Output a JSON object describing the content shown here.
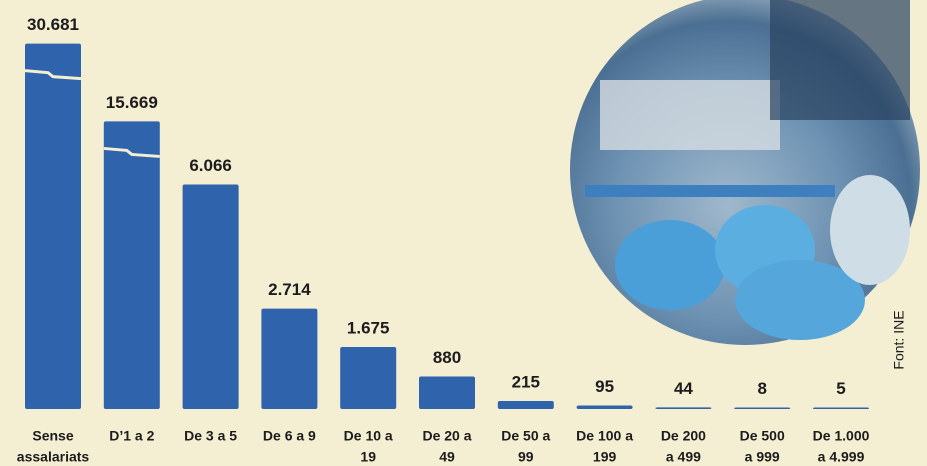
{
  "chart_data": {
    "type": "bar",
    "categories": [
      [
        "Sense",
        "assalariats"
      ],
      [
        "D’1 a 2"
      ],
      [
        "De 3 a 5"
      ],
      [
        "De 6 a 9"
      ],
      [
        "De 10 a",
        "19"
      ],
      [
        "De 20 a",
        "49"
      ],
      [
        "De 50 a",
        "99"
      ],
      [
        "De 100 a",
        "199"
      ],
      [
        "De 200",
        "a 499"
      ],
      [
        "De 500",
        "a 999"
      ],
      [
        "De 1.000",
        "a 4.999"
      ]
    ],
    "values": [
      30681,
      15669,
      6066,
      2714,
      1675,
      880,
      215,
      95,
      44,
      8,
      5
    ],
    "value_labels": [
      "30.681",
      "15.669",
      "6.066",
      "2.714",
      "1.675",
      "880",
      "215",
      "95",
      "44",
      "8",
      "5"
    ],
    "color": "#2f63ac",
    "source": "Font: INE"
  }
}
